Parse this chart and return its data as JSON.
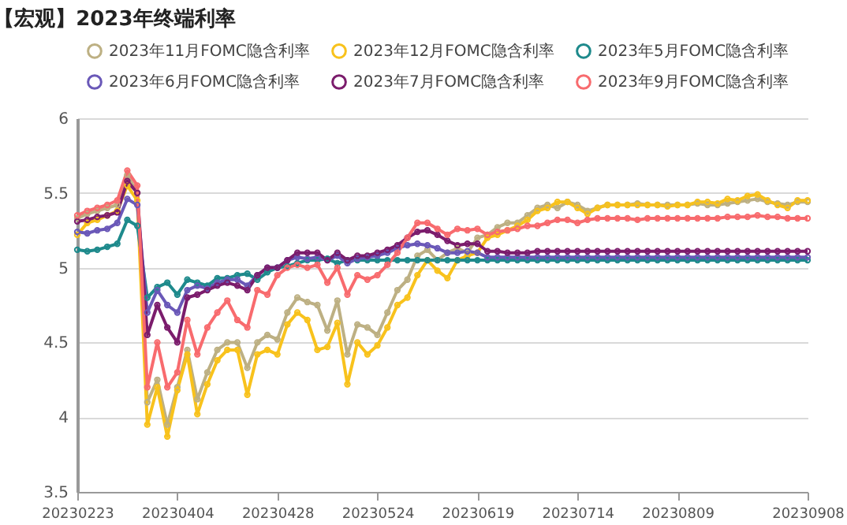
{
  "chart_data": {
    "type": "line",
    "title": "【宏观】2023年终端利率",
    "categories": [
      "20230223",
      null,
      null,
      null,
      null,
      null,
      null,
      null,
      null,
      null,
      "20230404",
      null,
      null,
      null,
      null,
      null,
      null,
      null,
      null,
      null,
      "20230428",
      null,
      null,
      null,
      null,
      null,
      null,
      null,
      null,
      null,
      "20230524",
      null,
      null,
      null,
      null,
      null,
      null,
      null,
      null,
      null,
      "20230619",
      null,
      null,
      null,
      null,
      null,
      null,
      null,
      null,
      null,
      "20230714",
      null,
      null,
      null,
      null,
      null,
      null,
      null,
      null,
      null,
      "20230809",
      null,
      null,
      null,
      null,
      null,
      null,
      null,
      null,
      null,
      null,
      null,
      null,
      "20230908"
    ],
    "series": [
      {
        "name": "2023年11月FOMC隐含利率",
        "color": "#bdb083",
        "values": [
          5.33,
          5.36,
          5.38,
          5.4,
          5.42,
          5.62,
          5.5,
          4.1,
          4.25,
          3.95,
          4.2,
          4.45,
          4.12,
          4.3,
          4.45,
          4.5,
          4.5,
          4.33,
          4.5,
          4.55,
          4.52,
          4.7,
          4.8,
          4.77,
          4.75,
          4.58,
          4.78,
          4.42,
          4.62,
          4.6,
          4.55,
          4.7,
          4.85,
          4.92,
          5.08,
          5.12,
          5.05,
          5.1,
          5.13,
          5.1,
          5.2,
          5.22,
          5.27,
          5.3,
          5.3,
          5.35,
          5.4,
          5.42,
          5.4,
          5.44,
          5.42,
          5.38,
          5.4,
          5.42,
          5.42,
          5.42,
          5.43,
          5.42,
          5.42,
          5.42,
          5.42,
          5.42,
          5.43,
          5.42,
          5.42,
          5.43,
          5.44,
          5.45,
          5.46,
          5.44,
          5.43,
          5.42,
          5.44,
          5.44
        ]
      },
      {
        "name": "2023年12月FOMC隐含利率",
        "color": "#f8c21c",
        "values": [
          5.22,
          5.3,
          5.32,
          5.35,
          5.38,
          5.55,
          5.45,
          3.95,
          4.2,
          3.87,
          4.18,
          4.42,
          4.02,
          4.22,
          4.38,
          4.45,
          4.45,
          4.15,
          4.42,
          4.45,
          4.42,
          4.62,
          4.7,
          4.65,
          4.45,
          4.47,
          4.63,
          4.22,
          4.5,
          4.42,
          4.48,
          4.6,
          4.75,
          4.8,
          4.95,
          5.05,
          4.98,
          4.93,
          5.05,
          5.08,
          5.1,
          5.2,
          5.22,
          5.25,
          5.28,
          5.32,
          5.38,
          5.4,
          5.44,
          5.44,
          5.4,
          5.36,
          5.4,
          5.42,
          5.42,
          5.42,
          5.42,
          5.42,
          5.42,
          5.41,
          5.42,
          5.42,
          5.44,
          5.44,
          5.43,
          5.46,
          5.45,
          5.48,
          5.49,
          5.45,
          5.42,
          5.4,
          5.45,
          5.45
        ]
      },
      {
        "name": "2023年5月FOMC隐含利率",
        "color": "#1e8a8c",
        "values": [
          5.12,
          5.11,
          5.12,
          5.14,
          5.16,
          5.32,
          5.28,
          4.8,
          4.87,
          4.9,
          4.82,
          4.92,
          4.9,
          4.88,
          4.93,
          4.93,
          4.95,
          4.96,
          4.92,
          4.97,
          5.0,
          5.01,
          5.03,
          5.05,
          5.05,
          5.06,
          5.03,
          5.05,
          5.05,
          5.05,
          5.05,
          5.05,
          5.05,
          5.05,
          5.05,
          5.05,
          5.05,
          5.05,
          5.05,
          5.05,
          5.05,
          5.05,
          5.05,
          5.05,
          5.05,
          5.05,
          5.05,
          5.05,
          5.05,
          5.05,
          5.05,
          5.05,
          5.05,
          5.05,
          5.05,
          5.05,
          5.05,
          5.05,
          5.05,
          5.05,
          5.05,
          5.05,
          5.05,
          5.05,
          5.05,
          5.05,
          5.05,
          5.05,
          5.05,
          5.05,
          5.05,
          5.05,
          5.05,
          5.05
        ]
      },
      {
        "name": "2023年6月FOMC隐含利率",
        "color": "#6a58b8",
        "values": [
          5.24,
          5.23,
          5.25,
          5.26,
          5.3,
          5.46,
          5.42,
          4.7,
          4.85,
          4.75,
          4.7,
          4.85,
          4.88,
          4.86,
          4.9,
          4.92,
          4.92,
          4.88,
          4.95,
          5.0,
          5.0,
          5.05,
          5.07,
          5.06,
          5.07,
          5.05,
          5.08,
          5.03,
          5.06,
          5.07,
          5.08,
          5.1,
          5.13,
          5.15,
          5.16,
          5.15,
          5.13,
          5.1,
          5.1,
          5.11,
          5.1,
          5.07,
          5.07,
          5.07,
          5.07,
          5.07,
          5.07,
          5.07,
          5.07,
          5.07,
          5.07,
          5.07,
          5.07,
          5.07,
          5.07,
          5.07,
          5.07,
          5.07,
          5.07,
          5.07,
          5.07,
          5.07,
          5.07,
          5.07,
          5.07,
          5.07,
          5.07,
          5.07,
          5.07,
          5.07,
          5.07,
          5.07,
          5.07,
          5.07
        ]
      },
      {
        "name": "2023年7月FOMC隐含利率",
        "color": "#7b1c6c",
        "values": [
          5.31,
          5.32,
          5.34,
          5.35,
          5.37,
          5.58,
          5.5,
          4.55,
          4.75,
          4.6,
          4.5,
          4.8,
          4.82,
          4.85,
          4.88,
          4.9,
          4.88,
          4.85,
          4.95,
          5.0,
          5.0,
          5.05,
          5.1,
          5.1,
          5.1,
          5.05,
          5.1,
          5.05,
          5.08,
          5.08,
          5.1,
          5.12,
          5.15,
          5.2,
          5.24,
          5.25,
          5.22,
          5.18,
          5.15,
          5.16,
          5.16,
          5.11,
          5.11,
          5.1,
          5.1,
          5.1,
          5.11,
          5.11,
          5.11,
          5.11,
          5.11,
          5.11,
          5.11,
          5.11,
          5.11,
          5.11,
          5.11,
          5.11,
          5.11,
          5.11,
          5.11,
          5.11,
          5.11,
          5.11,
          5.11,
          5.11,
          5.11,
          5.11,
          5.11,
          5.11,
          5.11,
          5.11,
          5.11,
          5.11
        ]
      },
      {
        "name": "2023年9月FOMC隐含利率",
        "color": "#f86b6e",
        "values": [
          5.35,
          5.38,
          5.4,
          5.42,
          5.45,
          5.65,
          5.55,
          4.2,
          4.5,
          4.2,
          4.3,
          4.65,
          4.42,
          4.6,
          4.7,
          4.78,
          4.65,
          4.6,
          4.85,
          4.82,
          4.95,
          5.0,
          5.02,
          5.0,
          5.02,
          4.9,
          5.0,
          4.82,
          4.95,
          4.92,
          4.95,
          5.02,
          5.1,
          5.2,
          5.3,
          5.3,
          5.26,
          5.22,
          5.26,
          5.25,
          5.26,
          5.22,
          5.24,
          5.25,
          5.26,
          5.28,
          5.28,
          5.3,
          5.32,
          5.32,
          5.3,
          5.32,
          5.33,
          5.33,
          5.33,
          5.33,
          5.32,
          5.33,
          5.33,
          5.33,
          5.33,
          5.33,
          5.33,
          5.33,
          5.33,
          5.34,
          5.34,
          5.34,
          5.35,
          5.34,
          5.34,
          5.33,
          5.33,
          5.33
        ]
      }
    ],
    "ylim": [
      3.5,
      6
    ],
    "yticks": [
      3.5,
      4,
      4.5,
      5,
      5.5,
      6
    ],
    "grid": "y",
    "legend": "top",
    "marker": "circle",
    "line_style": "solid"
  }
}
